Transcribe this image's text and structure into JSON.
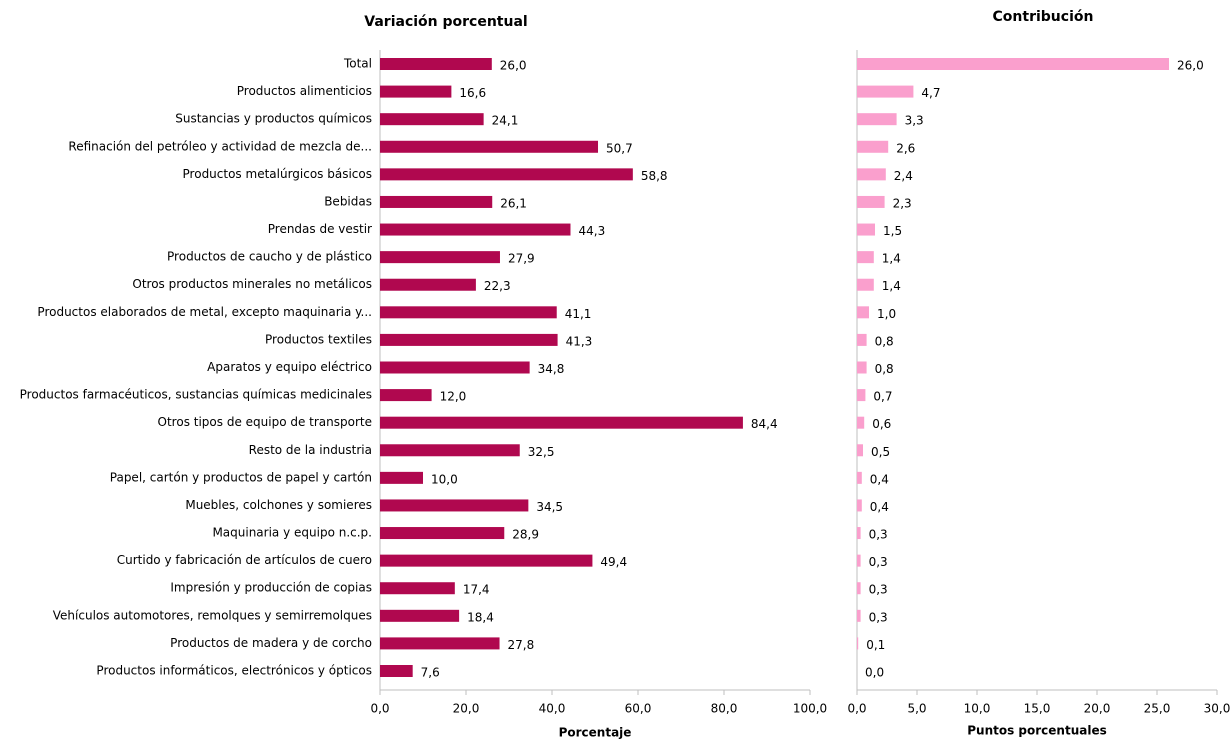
{
  "chart_data": [
    {
      "type": "bar",
      "title": "Variación porcentual",
      "xlabel": "Porcentaje",
      "categories": [
        "Total",
        "Productos alimenticios",
        "Sustancias y productos químicos",
        "Refinación del petróleo y actividad de mezcla de...",
        "Productos metalúrgicos básicos",
        "Bebidas",
        "Prendas de vestir",
        "Productos de caucho y de plástico",
        "Otros productos minerales no metálicos",
        "Productos elaborados de metal, excepto maquinaria y...",
        "Productos textiles",
        "Aparatos y equipo eléctrico",
        "Productos farmacéuticos, sustancias químicas medicinales",
        "Otros tipos de equipo de transporte",
        "Resto de la industria",
        "Papel, cartón y productos de papel y cartón",
        "Muebles, colchones y somieres",
        "Maquinaria y equipo n.c.p.",
        "Curtido y fabricación de artículos de cuero",
        "Impresión y producción de copias",
        "Vehículos automotores, remolques y semirremolques",
        "Productos de madera y de corcho",
        "Productos informáticos, electrónicos y ópticos"
      ],
      "values": [
        26.0,
        16.6,
        24.1,
        50.7,
        58.8,
        26.1,
        44.3,
        27.9,
        22.3,
        41.1,
        41.3,
        34.8,
        12.0,
        84.4,
        32.5,
        10.0,
        34.5,
        28.9,
        49.4,
        17.4,
        18.4,
        27.8,
        7.6
      ],
      "value_labels": [
        "26,0",
        "16,6",
        "24,1",
        "50,7",
        "58,8",
        "26,1",
        "44,3",
        "27,9",
        "22,3",
        "41,1",
        "41,3",
        "34,8",
        "12,0",
        "84,4",
        "32,5",
        "10,0",
        "34,5",
        "28,9",
        "49,4",
        "17,4",
        "18,4",
        "27,8",
        "7,6"
      ],
      "color": "#b0084f",
      "xlim": [
        0,
        100
      ],
      "xticks": [
        {
          "value": 0,
          "label": "0,0"
        },
        {
          "value": 20,
          "label": "20,0"
        },
        {
          "value": 40,
          "label": "40,0"
        },
        {
          "value": 60,
          "label": "60,0"
        },
        {
          "value": 80,
          "label": "80,0"
        },
        {
          "value": 100,
          "label": "100,0"
        }
      ]
    },
    {
      "type": "bar",
      "title": "Contribución",
      "xlabel": "Puntos porcentuales",
      "values": [
        26.0,
        4.7,
        3.3,
        2.6,
        2.4,
        2.3,
        1.5,
        1.4,
        1.4,
        1.0,
        0.8,
        0.8,
        0.7,
        0.6,
        0.5,
        0.4,
        0.4,
        0.3,
        0.3,
        0.3,
        0.3,
        0.1,
        0.0
      ],
      "value_labels": [
        "26,0",
        "4,7",
        "3,3",
        "2,6",
        "2,4",
        "2,3",
        "1,5",
        "1,4",
        "1,4",
        "1,0",
        "0,8",
        "0,8",
        "0,7",
        "0,6",
        "0,5",
        "0,4",
        "0,4",
        "0,3",
        "0,3",
        "0,3",
        "0,3",
        "0,1",
        "0,0"
      ],
      "color": "#fa9fcd",
      "xlim": [
        0,
        30
      ],
      "xticks": [
        {
          "value": 0,
          "label": "0,0"
        },
        {
          "value": 5,
          "label": "5,0"
        },
        {
          "value": 10,
          "label": "10,0"
        },
        {
          "value": 15,
          "label": "15,0"
        },
        {
          "value": 20,
          "label": "20,0"
        },
        {
          "value": 25,
          "label": "25,0"
        },
        {
          "value": 30,
          "label": "30,0"
        }
      ]
    }
  ]
}
